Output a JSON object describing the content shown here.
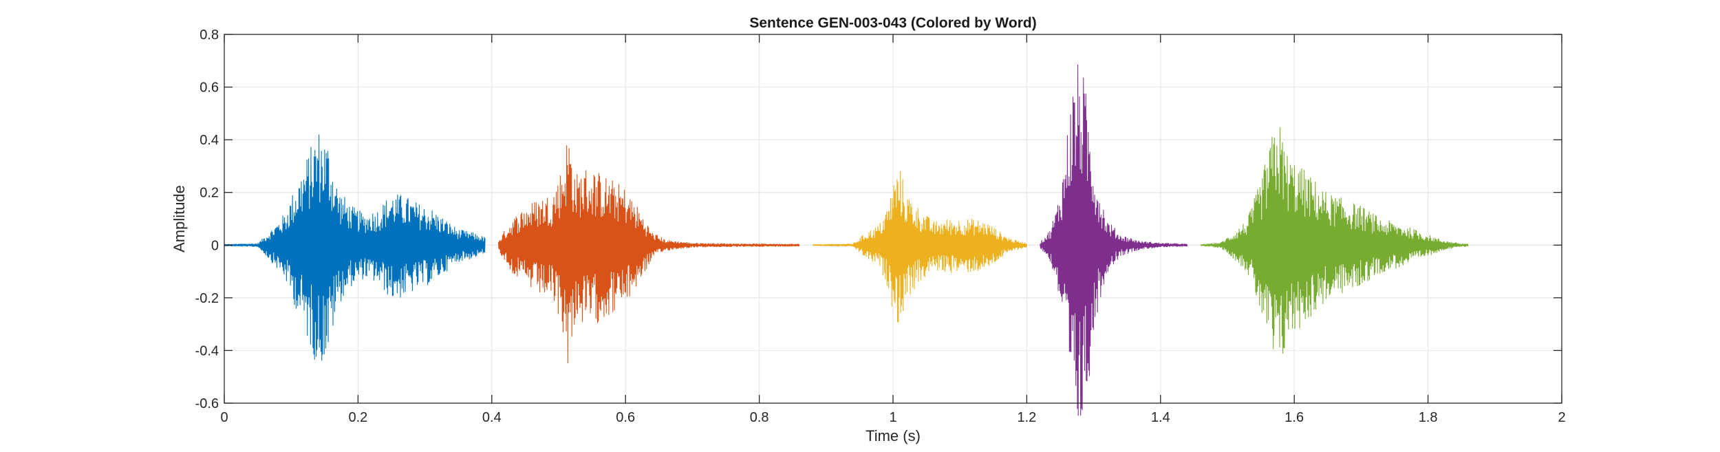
{
  "chart_data": {
    "type": "line",
    "title": "Sentence GEN-003-043 (Colored by Word)",
    "xlabel": "Time (s)",
    "ylabel": "Amplitude",
    "xlim": [
      0,
      2
    ],
    "ylim": [
      -0.6,
      0.8
    ],
    "xticks": [
      0,
      0.2,
      0.4,
      0.6,
      0.8,
      1,
      1.2,
      1.4,
      1.6,
      1.8,
      2
    ],
    "xtick_labels": [
      "0",
      "0.2",
      "0.4",
      "0.6",
      "0.8",
      "1",
      "1.2",
      "1.4",
      "1.6",
      "1.8",
      "2"
    ],
    "yticks": [
      -0.6,
      -0.4,
      -0.2,
      0,
      0.2,
      0.4,
      0.6,
      0.8
    ],
    "ytick_labels": [
      "-0.6",
      "-0.4",
      "-0.2",
      "0",
      "0.2",
      "0.4",
      "0.6",
      "0.8"
    ],
    "grid": true,
    "series": [
      {
        "color": "#0072BD",
        "t_start": 0.0,
        "t_end": 0.39,
        "envelope": [
          [
            0.0,
            0.003
          ],
          [
            0.05,
            0.006
          ],
          [
            0.07,
            0.06
          ],
          [
            0.09,
            0.12
          ],
          [
            0.11,
            0.25
          ],
          [
            0.13,
            0.38
          ],
          [
            0.14,
            0.45
          ],
          [
            0.155,
            0.4
          ],
          [
            0.17,
            0.22
          ],
          [
            0.19,
            0.15
          ],
          [
            0.21,
            0.12
          ],
          [
            0.23,
            0.14
          ],
          [
            0.25,
            0.2
          ],
          [
            0.27,
            0.19
          ],
          [
            0.29,
            0.16
          ],
          [
            0.31,
            0.14
          ],
          [
            0.33,
            0.1
          ],
          [
            0.35,
            0.06
          ],
          [
            0.37,
            0.05
          ],
          [
            0.39,
            0.03
          ]
        ]
      },
      {
        "color": "#D95319",
        "t_start": 0.41,
        "t_end": 0.86,
        "envelope": [
          [
            0.41,
            0.02
          ],
          [
            0.43,
            0.1
          ],
          [
            0.45,
            0.15
          ],
          [
            0.47,
            0.18
          ],
          [
            0.49,
            0.2
          ],
          [
            0.505,
            0.3
          ],
          [
            0.515,
            0.45
          ],
          [
            0.525,
            0.27
          ],
          [
            0.54,
            0.3
          ],
          [
            0.56,
            0.28
          ],
          [
            0.58,
            0.25
          ],
          [
            0.6,
            0.22
          ],
          [
            0.62,
            0.14
          ],
          [
            0.64,
            0.05
          ],
          [
            0.66,
            0.02
          ],
          [
            0.7,
            0.008
          ],
          [
            0.75,
            0.006
          ],
          [
            0.8,
            0.005
          ],
          [
            0.86,
            0.004
          ]
        ]
      },
      {
        "color": "#EDB120",
        "t_start": 0.88,
        "t_end": 1.2,
        "envelope": [
          [
            0.88,
            0.002
          ],
          [
            0.94,
            0.005
          ],
          [
            0.96,
            0.05
          ],
          [
            0.98,
            0.08
          ],
          [
            0.995,
            0.17
          ],
          [
            1.0,
            0.25
          ],
          [
            1.01,
            0.3
          ],
          [
            1.02,
            0.2
          ],
          [
            1.04,
            0.14
          ],
          [
            1.06,
            0.09
          ],
          [
            1.08,
            0.1
          ],
          [
            1.1,
            0.1
          ],
          [
            1.12,
            0.1
          ],
          [
            1.14,
            0.09
          ],
          [
            1.16,
            0.05
          ],
          [
            1.18,
            0.02
          ],
          [
            1.2,
            0.008
          ]
        ]
      },
      {
        "color": "#7E2F8E",
        "t_start": 1.22,
        "t_end": 1.44,
        "envelope": [
          [
            1.22,
            0.01
          ],
          [
            1.235,
            0.06
          ],
          [
            1.245,
            0.15
          ],
          [
            1.255,
            0.3
          ],
          [
            1.265,
            0.55
          ],
          [
            1.275,
            0.7
          ],
          [
            1.285,
            0.65
          ],
          [
            1.295,
            0.45
          ],
          [
            1.305,
            0.25
          ],
          [
            1.32,
            0.1
          ],
          [
            1.34,
            0.04
          ],
          [
            1.37,
            0.015
          ],
          [
            1.4,
            0.008
          ],
          [
            1.44,
            0.004
          ]
        ]
      },
      {
        "color": "#77AC30",
        "t_start": 1.46,
        "t_end": 1.86,
        "envelope": [
          [
            1.46,
            0.002
          ],
          [
            1.49,
            0.01
          ],
          [
            1.51,
            0.05
          ],
          [
            1.53,
            0.1
          ],
          [
            1.55,
            0.25
          ],
          [
            1.565,
            0.4
          ],
          [
            1.575,
            0.5
          ],
          [
            1.59,
            0.35
          ],
          [
            1.61,
            0.3
          ],
          [
            1.63,
            0.25
          ],
          [
            1.65,
            0.2
          ],
          [
            1.67,
            0.18
          ],
          [
            1.7,
            0.15
          ],
          [
            1.73,
            0.1
          ],
          [
            1.76,
            0.08
          ],
          [
            1.79,
            0.05
          ],
          [
            1.82,
            0.02
          ],
          [
            1.85,
            0.005
          ]
        ]
      }
    ]
  }
}
